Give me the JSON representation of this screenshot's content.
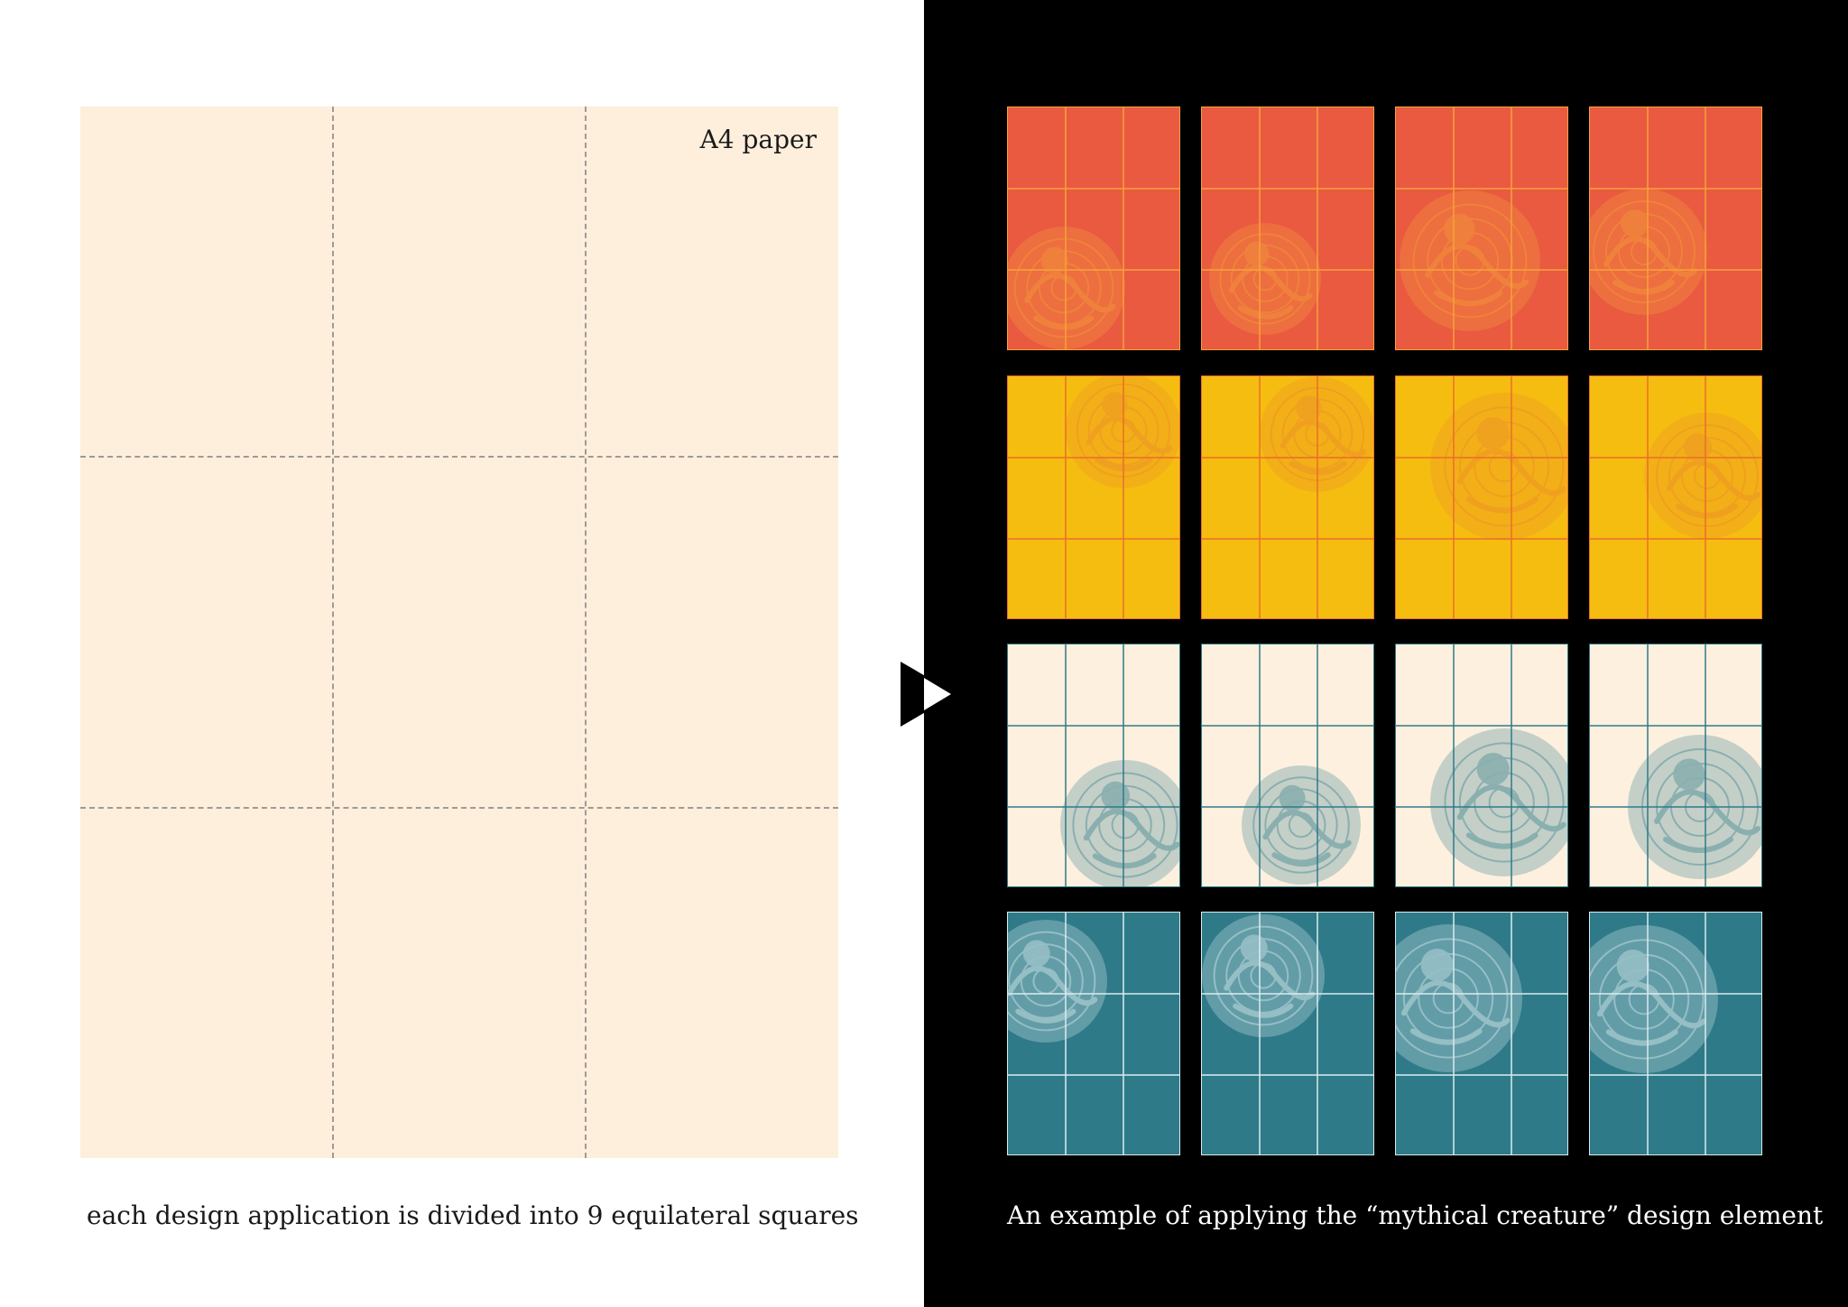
{
  "left": {
    "paper_label": "A4 paper",
    "caption": "each design application is divided into 9 equilateral squares",
    "paper_color": "#fdefdc",
    "divider_color": "#a09a94"
  },
  "right": {
    "caption": "An example of applying the “mythical creature” design element",
    "background": "#000000"
  },
  "arrow_icon": "triangle-right-icon",
  "rows": [
    {
      "name": "red",
      "bg": "#e95a40",
      "line": "#f6a23a",
      "motif": "#f6a23a",
      "motif_opacity": 0.55,
      "creature": "dragon"
    },
    {
      "name": "yellow",
      "bg": "#f6bd11",
      "line": "#ea6f2a",
      "motif": "#ea8a2a",
      "motif_opacity": 0.55,
      "creature": "phoenix"
    },
    {
      "name": "cream",
      "bg": "#fdf0de",
      "line": "#2e7a8a",
      "motif": "#2e7a8a",
      "motif_opacity": 0.55,
      "creature": "qilin"
    },
    {
      "name": "teal",
      "bg": "#2f7a88",
      "line": "#d9ecef",
      "motif": "#d9ecef",
      "motif_opacity": 0.6,
      "creature": "crane"
    }
  ]
}
